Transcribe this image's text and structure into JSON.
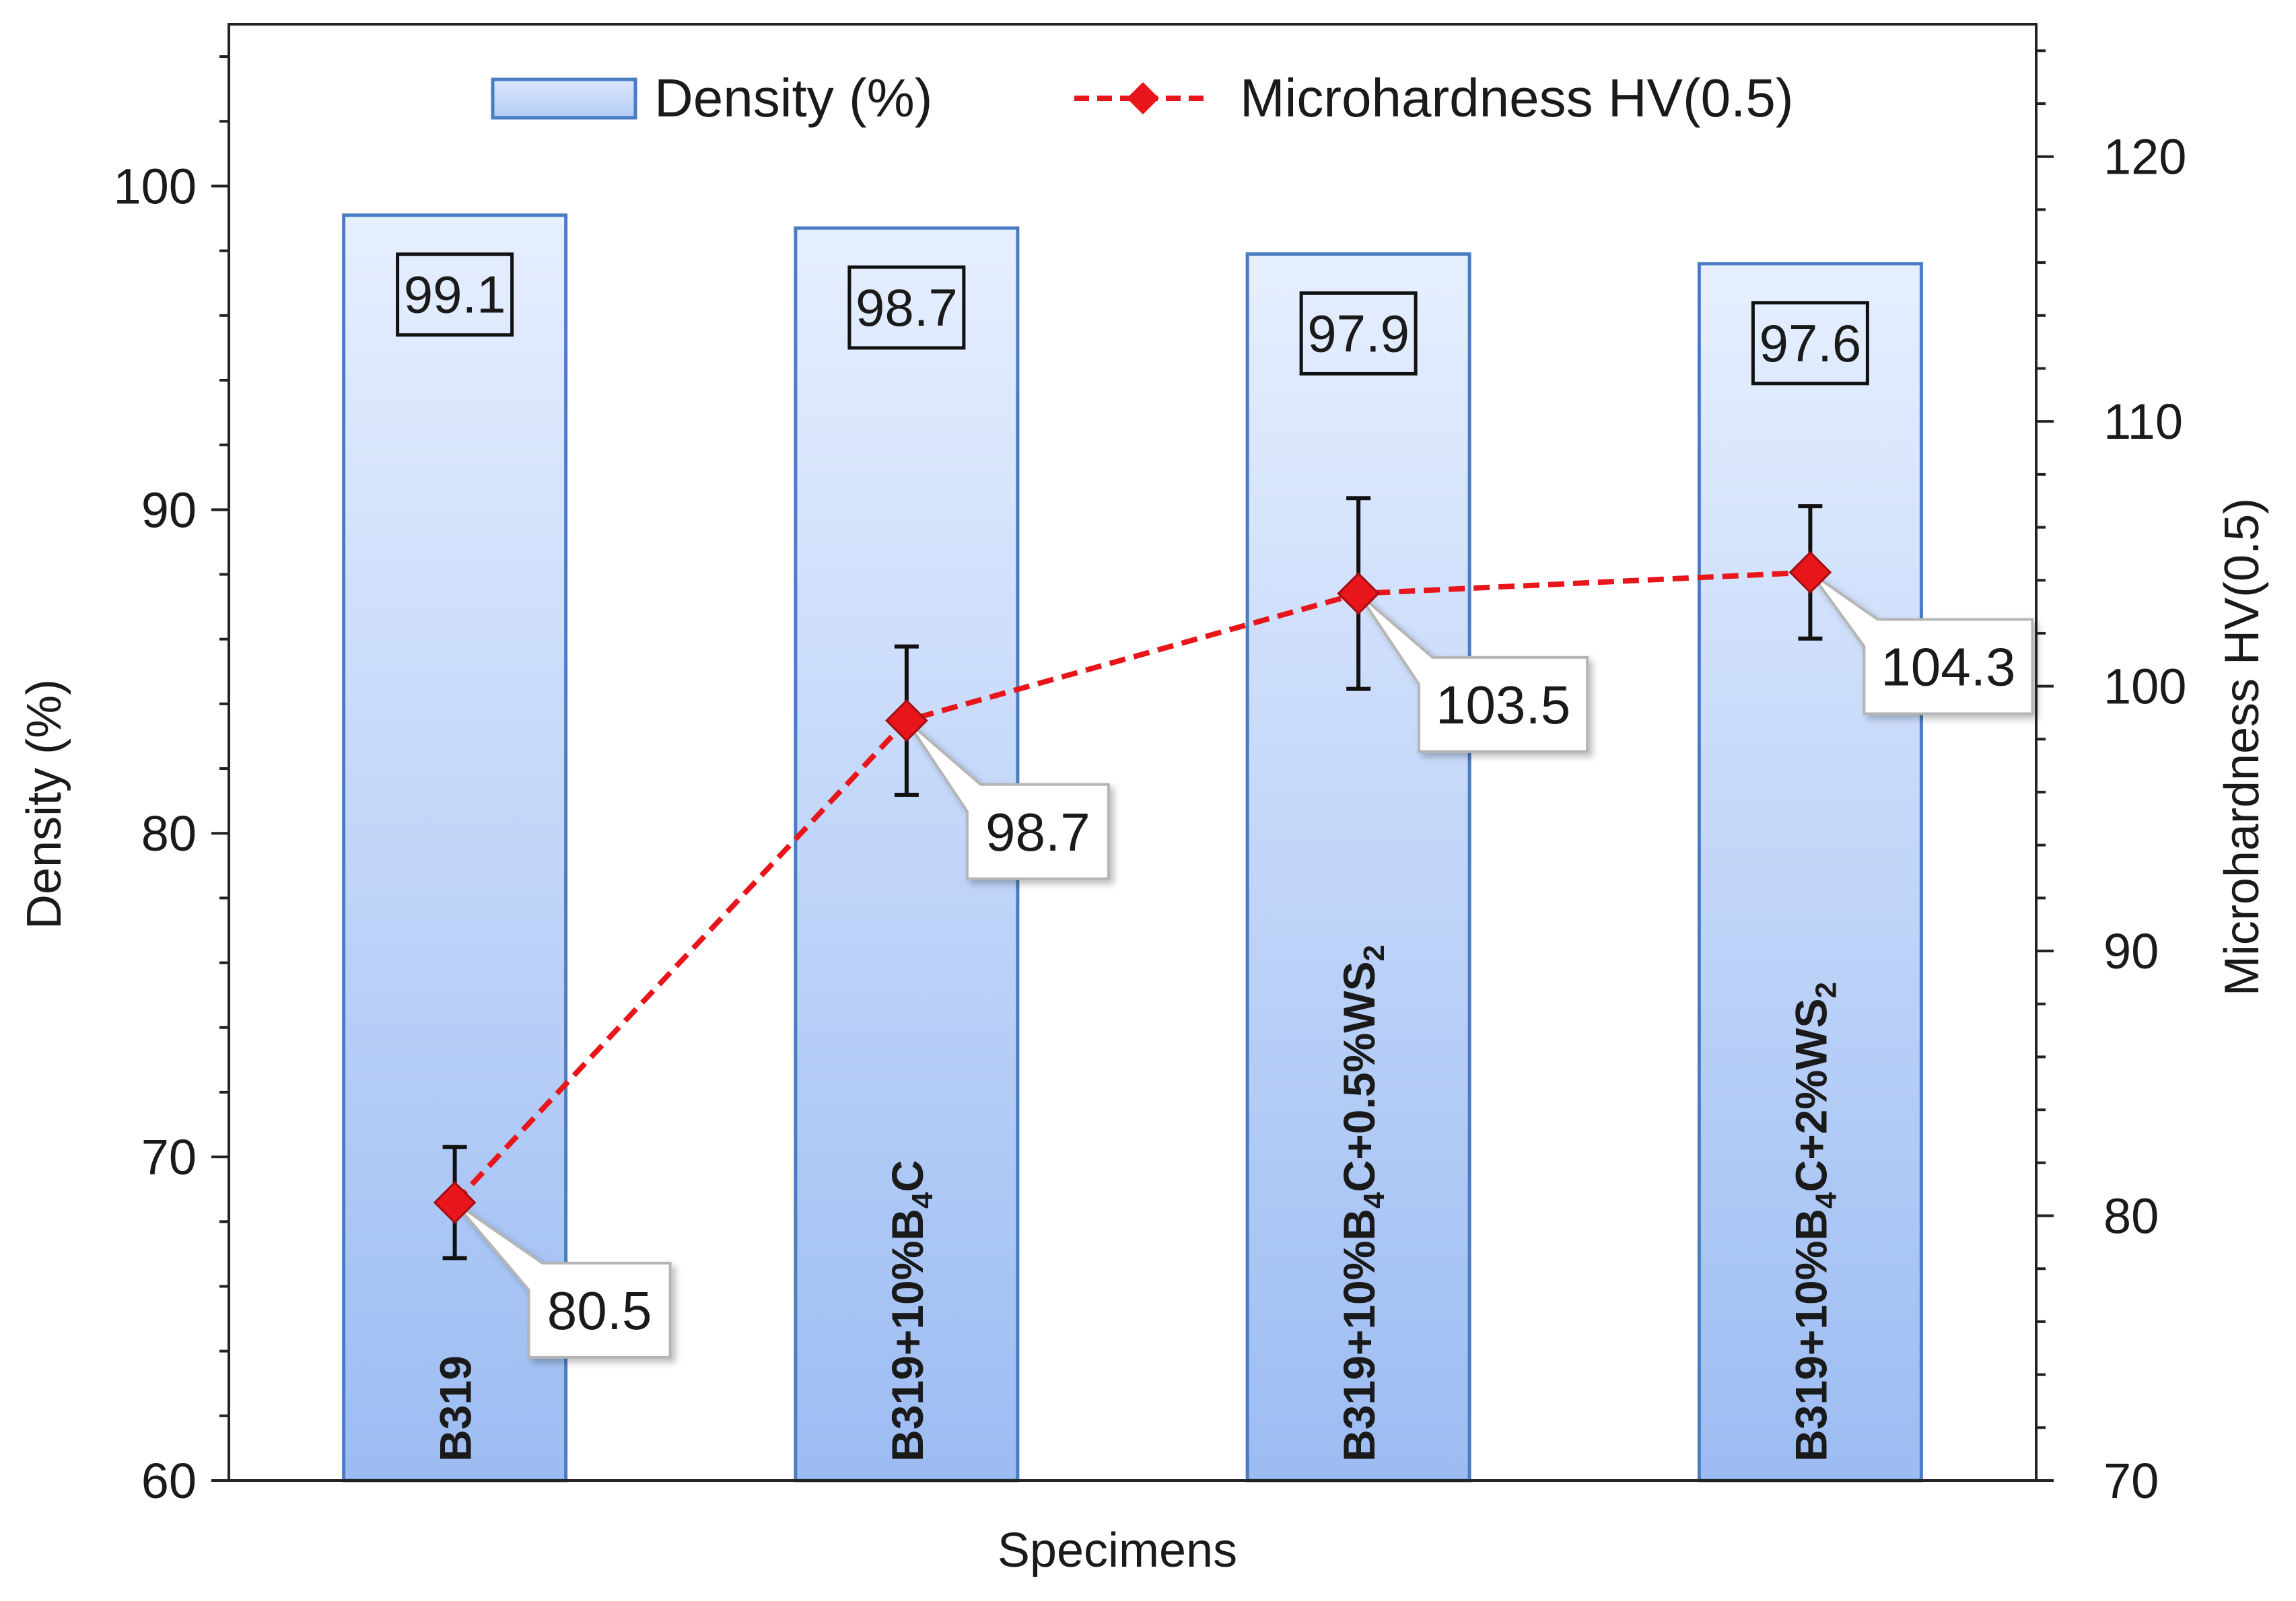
{
  "chart_data": {
    "type": "bar",
    "xlabel": "Specimens",
    "categories": [
      {
        "base": "B319",
        "sub": "",
        "tail": "",
        "sub2": ""
      },
      {
        "base": "B319+10%B",
        "sub": "4",
        "tail": "C",
        "sub2": ""
      },
      {
        "base": "B319+10%B",
        "sub": "4",
        "tail": "C+0.5%WS",
        "sub2": "2"
      },
      {
        "base": "B319+10%B",
        "sub": "4",
        "tail": "C+2%WS",
        "sub2": "2"
      }
    ],
    "series": [
      {
        "name": "Density (%)",
        "type": "bar",
        "axis": "left",
        "values": [
          99.1,
          98.7,
          97.9,
          97.6
        ],
        "labels": [
          "99.1",
          "98.7",
          "97.9",
          "97.6"
        ],
        "color": "#4a7cc2",
        "fill_top": "#e6efff",
        "fill_bottom": "#9cbcf2"
      },
      {
        "name": "Microhardness HV(0.5)",
        "type": "line",
        "axis": "right",
        "values": [
          80.5,
          98.7,
          103.5,
          104.3
        ],
        "labels": [
          "80.5",
          "98.7",
          "103.5",
          "104.3"
        ],
        "error": [
          2.1,
          2.8,
          3.6,
          2.5
        ],
        "color": "#e8161b"
      }
    ],
    "y_left": {
      "label": "Density (%)",
      "min": 60,
      "max": 105,
      "major": [
        60,
        70,
        80,
        90,
        100
      ],
      "minor_step": 2
    },
    "y_right": {
      "label": "Microhardness HV(0.5)",
      "min": 70,
      "max": 125,
      "major": [
        70,
        80,
        90,
        100,
        110,
        120
      ],
      "minor_step": 2
    },
    "legend_position": "top-center",
    "grid": false
  }
}
